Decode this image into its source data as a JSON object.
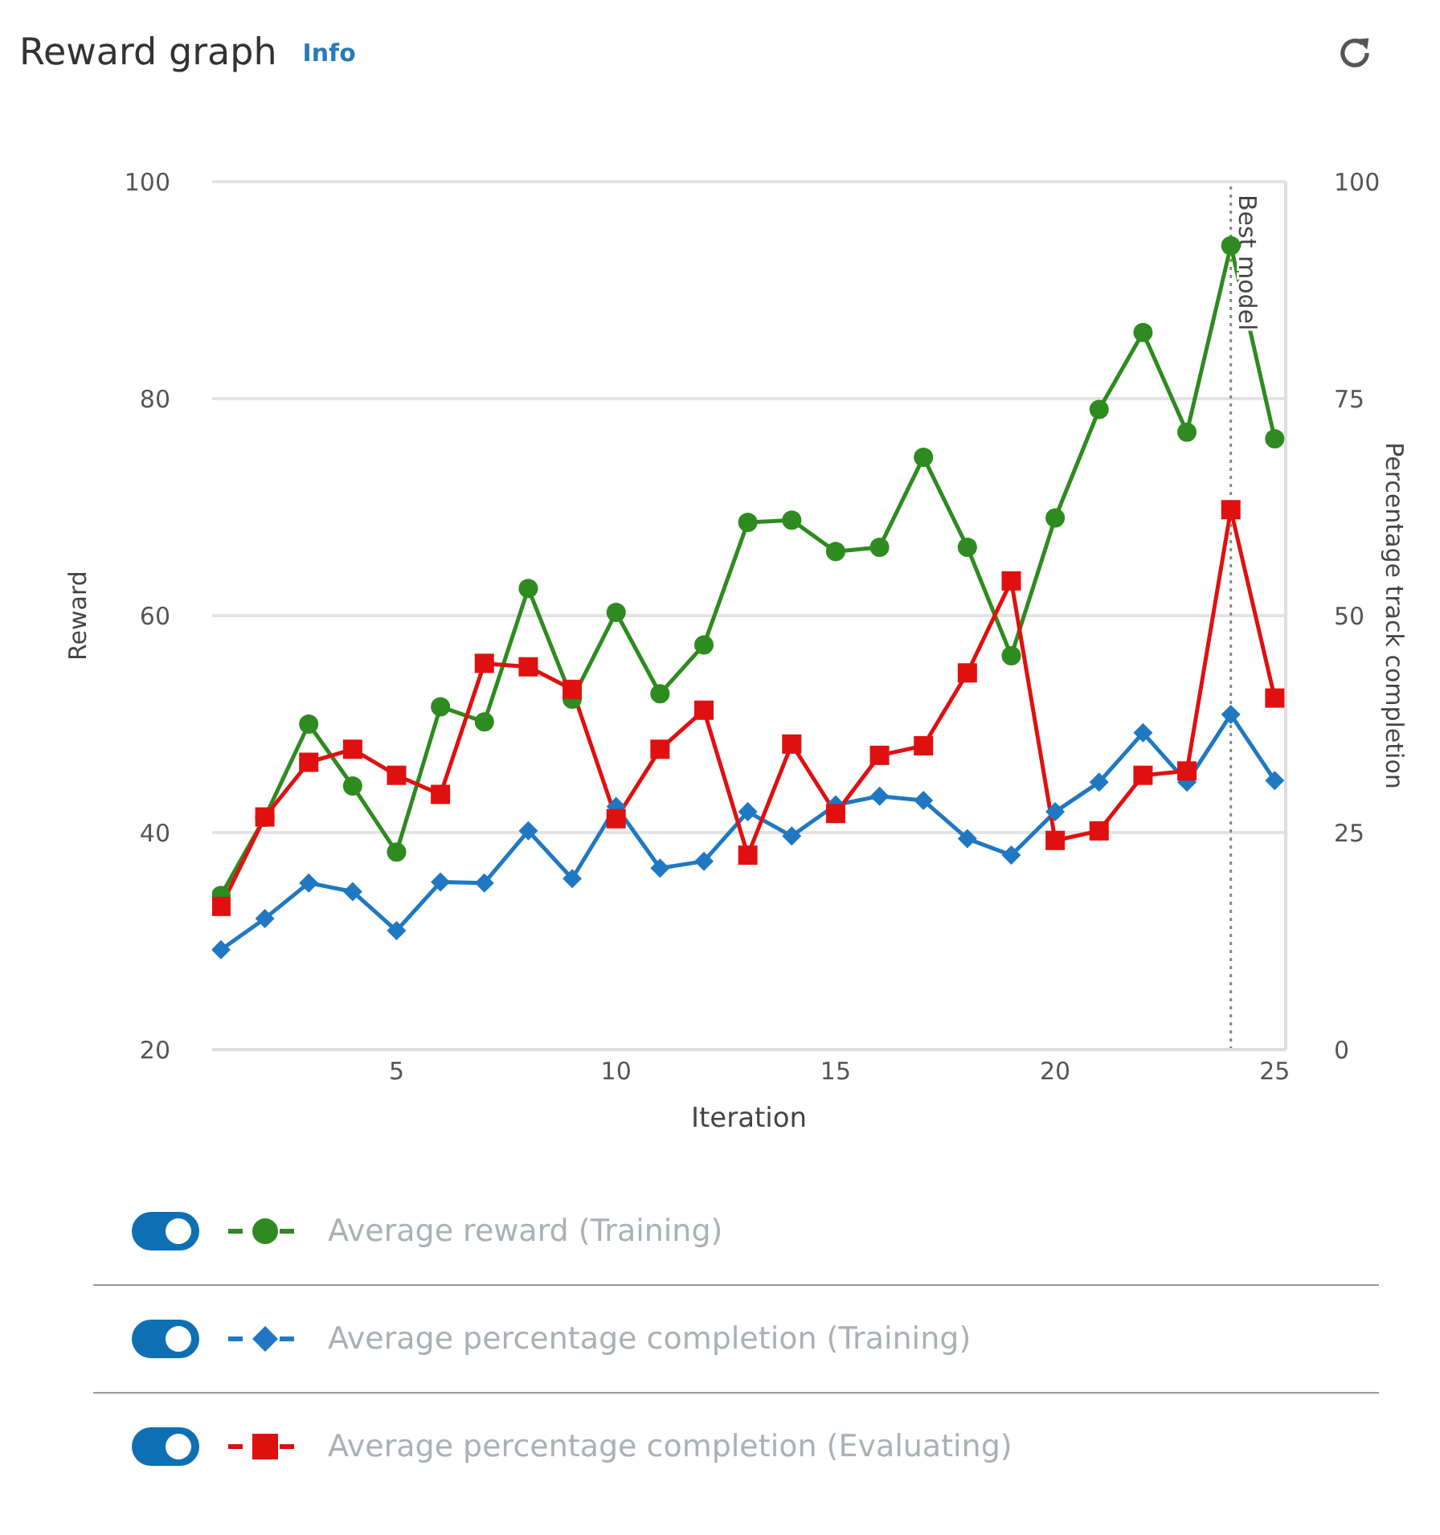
{
  "chart_data": {
    "type": "line",
    "title": "Reward graph",
    "annotations": [
      "Info"
    ],
    "xlabel": "Iteration",
    "ylabel": "Reward",
    "y2label": "Percentage track completion",
    "x": [
      1,
      2,
      3,
      4,
      5,
      6,
      7,
      8,
      9,
      10,
      11,
      12,
      13,
      14,
      15,
      16,
      17,
      18,
      19,
      20,
      21,
      22,
      23,
      24,
      25
    ],
    "xlim": [
      0.8,
      25.25
    ],
    "xticks": [
      5,
      10,
      15,
      20,
      25
    ],
    "ylim": [
      20,
      100
    ],
    "yticks": [
      20,
      40,
      60,
      80,
      100
    ],
    "y2lim": [
      0,
      100
    ],
    "y2ticks": [
      0,
      25,
      50,
      75,
      100
    ],
    "grid": "y",
    "legend": "bottom",
    "line_style": "solid",
    "ref_lines": [
      {
        "axis": "x",
        "value": 24,
        "label": "Best model",
        "color": "#888888",
        "line_style": "dotted"
      }
    ],
    "series": [
      {
        "name": "Average reward (Training)",
        "color": "#2e8b1f",
        "marker": "circle",
        "values": [
          34.2,
          41.4,
          50.0,
          44.3,
          38.2,
          51.6,
          50.2,
          62.5,
          52.3,
          60.3,
          52.8,
          57.3,
          68.6,
          68.8,
          65.9,
          66.3,
          74.6,
          66.3,
          56.3,
          69.0,
          79.0,
          86.1,
          76.9,
          94.1,
          76.3
        ]
      },
      {
        "name": "Average percentage completion (Training)",
        "color": "#1f78c1",
        "marker": "diamond",
        "axis": "y2",
        "values": [
          11.5,
          15.1,
          19.2,
          18.2,
          13.7,
          19.3,
          19.2,
          25.2,
          19.7,
          28.0,
          20.9,
          21.7,
          27.4,
          24.6,
          28.2,
          29.2,
          28.7,
          24.3,
          22.4,
          27.4,
          30.8,
          36.5,
          30.8,
          38.6,
          31.0
        ]
      },
      {
        "name": "Average percentage completion (Evaluating)",
        "color": "#e01010",
        "marker": "square",
        "axis": "y2",
        "values": [
          16.5,
          26.8,
          33.1,
          34.6,
          31.6,
          29.4,
          44.5,
          44.1,
          41.5,
          26.6,
          34.6,
          39.1,
          22.4,
          35.2,
          27.2,
          33.9,
          35.0,
          43.4,
          54.0,
          24.1,
          25.2,
          31.6,
          32.1,
          62.2,
          40.5
        ]
      }
    ]
  }
}
